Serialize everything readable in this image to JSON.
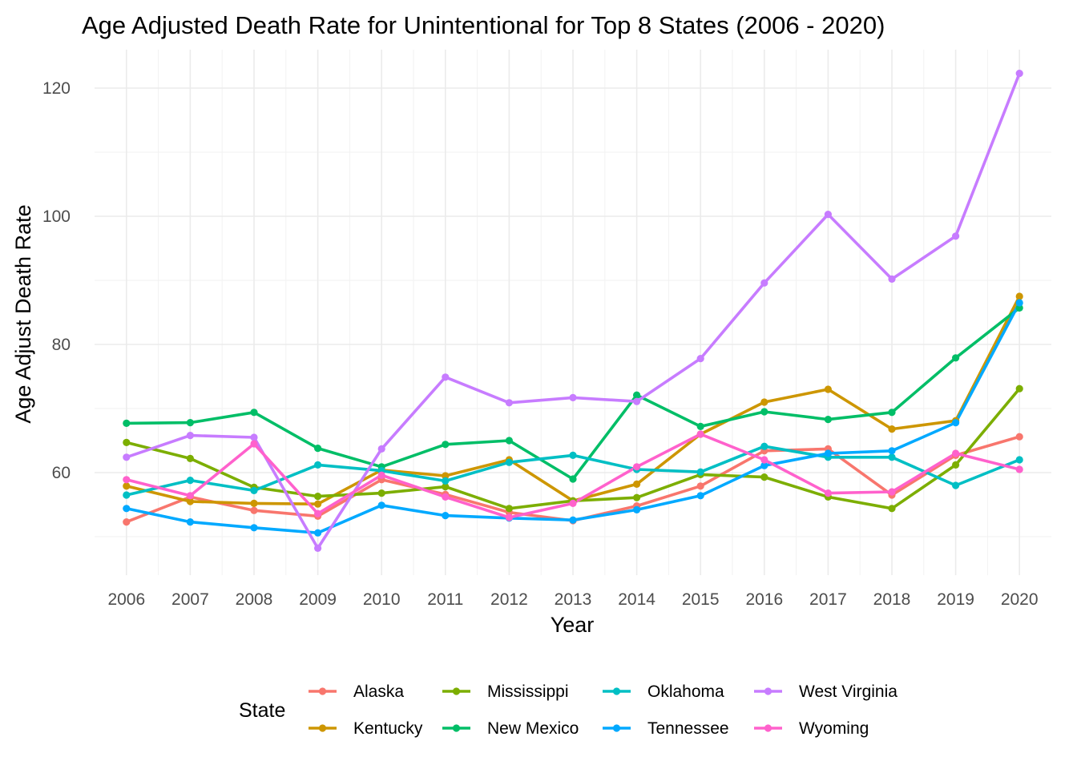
{
  "chart_data": {
    "type": "line",
    "title": "Age Adjusted Death Rate for Unintentional for Top 8 States (2006 - 2020)",
    "xlabel": "Year",
    "ylabel": "Age Adjust Death Rate",
    "x": [
      2006,
      2007,
      2008,
      2009,
      2010,
      2011,
      2012,
      2013,
      2014,
      2015,
      2016,
      2017,
      2018,
      2019,
      2020
    ],
    "xlim": [
      2005.5,
      2020.5
    ],
    "ylim": [
      44,
      126
    ],
    "yticks": [
      60,
      80,
      100,
      120
    ],
    "grid": true,
    "legend": {
      "title": "State",
      "position": "bottom"
    },
    "series": [
      {
        "name": "Alaska",
        "color": "#F8766D",
        "values": [
          52.3,
          56.2,
          54.1,
          53.2,
          58.9,
          56.6,
          53.8,
          52.5,
          54.8,
          57.9,
          63.4,
          63.7,
          56.5,
          62.7,
          65.6
        ]
      },
      {
        "name": "Kentucky",
        "color": "#CD9600",
        "values": [
          57.9,
          55.5,
          55.2,
          55.1,
          60.4,
          59.5,
          62.0,
          55.6,
          58.2,
          66.0,
          71.0,
          73.0,
          66.8,
          68.1,
          87.5
        ]
      },
      {
        "name": "Mississippi",
        "color": "#7CAE00",
        "values": [
          64.7,
          62.2,
          57.7,
          56.3,
          56.8,
          57.8,
          54.4,
          55.6,
          56.1,
          59.7,
          59.3,
          56.2,
          54.4,
          61.2,
          73.1
        ]
      },
      {
        "name": "New Mexico",
        "color": "#00BE67",
        "values": [
          67.7,
          67.8,
          69.4,
          63.8,
          60.9,
          64.4,
          65.0,
          59.0,
          72.1,
          67.2,
          69.5,
          68.3,
          69.4,
          77.9,
          85.7
        ]
      },
      {
        "name": "Oklahoma",
        "color": "#00BFC4",
        "values": [
          56.5,
          58.8,
          57.2,
          61.2,
          60.3,
          58.7,
          61.6,
          62.7,
          60.5,
          60.1,
          64.1,
          62.4,
          62.4,
          58.0,
          62.0
        ]
      },
      {
        "name": "Tennessee",
        "color": "#00A9FF",
        "values": [
          54.4,
          52.3,
          51.4,
          50.6,
          54.9,
          53.3,
          52.9,
          52.6,
          54.2,
          56.4,
          61.1,
          63.0,
          63.4,
          67.8,
          86.5
        ]
      },
      {
        "name": "West Virginia",
        "color": "#C77CFF",
        "values": [
          62.4,
          65.8,
          65.5,
          48.2,
          63.7,
          74.9,
          70.9,
          71.7,
          71.1,
          77.8,
          89.6,
          100.3,
          90.2,
          96.9,
          122.3
        ]
      },
      {
        "name": "Wyoming",
        "color": "#FF61CC",
        "values": [
          58.9,
          56.4,
          64.5,
          53.6,
          59.6,
          56.2,
          53.0,
          55.2,
          60.9,
          66.0,
          62.0,
          56.8,
          57.0,
          63.0,
          60.5
        ]
      }
    ]
  }
}
